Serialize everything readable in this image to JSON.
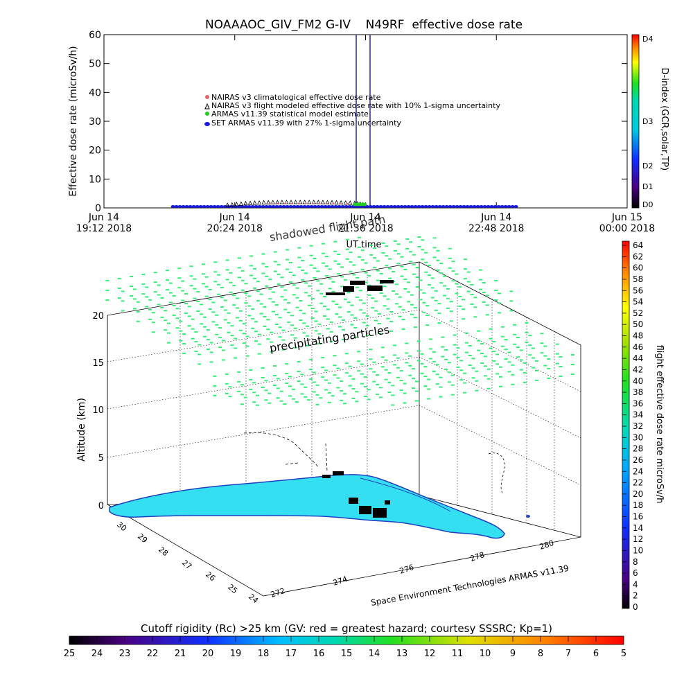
{
  "title": "NOAAAOC_GIV_FM2 G-IV    N49RF  effective dose rate",
  "top_chart": {
    "ylabel": "Effective dose rate (microSv/h)",
    "xlabel": "UT time",
    "ylim": [
      0,
      60
    ],
    "y_ticks": [
      "0",
      "10",
      "20",
      "30",
      "40",
      "50",
      "60"
    ],
    "x_ticks": [
      {
        "line1": "Jun 14",
        "line2": "19:12 2018"
      },
      {
        "line1": "Jun 14",
        "line2": "20:24 2018"
      },
      {
        "line1": "Jun 14",
        "line2": "21:36 2018"
      },
      {
        "line1": "Jun 14",
        "line2": "22:48 2018"
      },
      {
        "line1": "Jun 15",
        "line2": "00:00 2018"
      }
    ],
    "legend": [
      "NAIRAS v3 climatological effective dose rate",
      "NAIRAS v3 flight modeled effective dose rate with 10% 1-sigma uncertainty",
      "ARMAS v11.39 statistical model estimate",
      "SET ARMAS v11.39 with 27% 1-sigma uncertainty"
    ],
    "marker_colors": [
      "#e06666",
      "#000000",
      "#22cc22",
      "#1a1adc"
    ],
    "overlay_label": "shadowed flight path"
  },
  "d_index_bar": {
    "label": "D-index (GCR,solar,TP)",
    "ticks": [
      "D4",
      "D3",
      "D2",
      "D1",
      "D0"
    ]
  },
  "plot3d": {
    "zlabel": "Altitude (km)",
    "z_ticks": [
      "0",
      "5",
      "10",
      "15",
      "20"
    ],
    "lat_ticks": [
      "30",
      "29",
      "28",
      "27",
      "26",
      "25",
      "24"
    ],
    "lon_ticks": [
      "272",
      "274",
      "276",
      "278",
      "280"
    ],
    "annotation": "precipitating particles",
    "credit": "Space Environment Technologies ARMAS v11.39",
    "land_color": "#33dff0",
    "particle_color": "#33ee77"
  },
  "dose_colorbar": {
    "label": "flight effective dose rate microSv/h",
    "ticks": [
      "64",
      "62",
      "60",
      "58",
      "56",
      "54",
      "52",
      "50",
      "48",
      "46",
      "44",
      "42",
      "40",
      "38",
      "36",
      "34",
      "32",
      "30",
      "28",
      "26",
      "24",
      "22",
      "20",
      "18",
      "16",
      "14",
      "12",
      "10",
      "8",
      "6",
      "4",
      "2",
      "0"
    ]
  },
  "rigidity_bar": {
    "label": "Cutoff rigidity (Rc) >25 km (GV: red = greatest hazard; courtesy SSSRC; Kp=1)",
    "ticks": [
      "25",
      "24",
      "23",
      "22",
      "21",
      "20",
      "19",
      "18",
      "17",
      "16",
      "15",
      "14",
      "13",
      "12",
      "11",
      "10",
      "9",
      "8",
      "7",
      "6",
      "5"
    ]
  },
  "chart_data": {
    "type": "scatter",
    "title": "NOAAAOC_GIV_FM2 G-IV    N49RF  effective dose rate",
    "xlabel": "UT time",
    "ylabel": "Effective dose rate (microSv/h)",
    "ylim": [
      0,
      60
    ],
    "x_range": [
      "2018-06-14 19:12",
      "2018-06-15 00:00"
    ],
    "series": [
      {
        "name": "NAIRAS v3 climatological effective dose rate",
        "x": [
          "2018-06-14 20:44",
          "2018-06-14 21:36"
        ],
        "values": [
          1.0,
          1.0
        ]
      },
      {
        "name": "NAIRAS v3 flight modeled effective dose rate with 10% 1-sigma uncertainty",
        "x": [
          "2018-06-14 20:20",
          "2018-06-14 20:30",
          "2018-06-14 20:40",
          "2018-06-14 20:50",
          "2018-06-14 21:00",
          "2018-06-14 21:10",
          "2018-06-14 21:20",
          "2018-06-14 21:30",
          "2018-06-14 21:36"
        ],
        "values": [
          0.2,
          0.8,
          1.1,
          1.2,
          1.2,
          1.2,
          1.1,
          0.9,
          0.3
        ]
      },
      {
        "name": "ARMAS v11.39 statistical model estimate",
        "x": [
          "2018-06-14 21:30",
          "2018-06-14 21:36"
        ],
        "values": [
          0.5,
          0.5
        ]
      },
      {
        "name": "SET ARMAS v11.39 with 27% 1-sigma uncertainty",
        "x": [
          "2018-06-14 19:50",
          "2018-06-14 23:00"
        ],
        "values": [
          0,
          0
        ]
      }
    ],
    "grid": false,
    "legend_position": "upper-left"
  }
}
